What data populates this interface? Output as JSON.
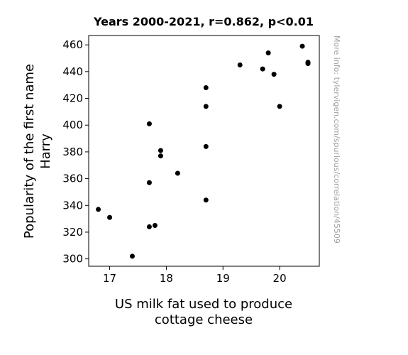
{
  "chart_data": {
    "type": "scatter",
    "title": "Years 2000-2021, r=0.862, p<0.01",
    "xlabel": [
      "US milk fat used to produce",
      "cottage cheese"
    ],
    "ylabel": [
      "Popularity of the first name",
      "Harry"
    ],
    "xlim": [
      16.63,
      20.7
    ],
    "ylim": [
      294.5,
      467
    ],
    "xticks": [
      17,
      18,
      19,
      20
    ],
    "yticks": [
      300,
      320,
      340,
      360,
      380,
      400,
      420,
      440,
      460
    ],
    "grid": false,
    "legend": "none",
    "marker_color": "#000000",
    "annotation": "More info: tylervigen.com/spurious/correlation/45509",
    "points": [
      {
        "x": 16.8,
        "y": 337
      },
      {
        "x": 17.0,
        "y": 331
      },
      {
        "x": 17.4,
        "y": 302
      },
      {
        "x": 17.7,
        "y": 401
      },
      {
        "x": 17.7,
        "y": 357
      },
      {
        "x": 17.7,
        "y": 324
      },
      {
        "x": 17.8,
        "y": 325
      },
      {
        "x": 17.9,
        "y": 381
      },
      {
        "x": 17.9,
        "y": 377
      },
      {
        "x": 18.2,
        "y": 364
      },
      {
        "x": 18.7,
        "y": 428
      },
      {
        "x": 18.7,
        "y": 414
      },
      {
        "x": 18.7,
        "y": 384
      },
      {
        "x": 18.7,
        "y": 344
      },
      {
        "x": 19.3,
        "y": 445
      },
      {
        "x": 19.7,
        "y": 442
      },
      {
        "x": 19.8,
        "y": 454
      },
      {
        "x": 19.9,
        "y": 438
      },
      {
        "x": 20.0,
        "y": 414
      },
      {
        "x": 20.4,
        "y": 459
      },
      {
        "x": 20.5,
        "y": 447
      },
      {
        "x": 20.5,
        "y": 446
      }
    ]
  }
}
